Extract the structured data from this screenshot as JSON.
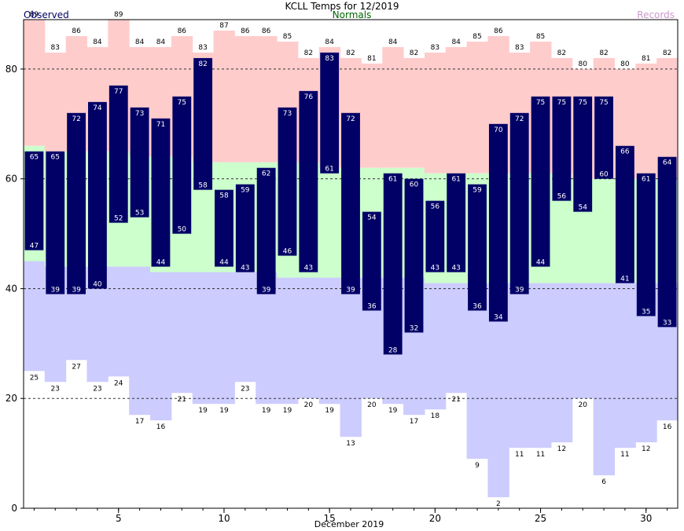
{
  "chart_data": {
    "type": "bar",
    "title": "KCLL Temps for 12/2019",
    "legend": {
      "observed": "Observed",
      "normals": "Normals",
      "records": "Records",
      "placement": "top"
    },
    "xlabel": "December 2019",
    "ylabel": "",
    "ylim": [
      0,
      89
    ],
    "y_ticks": [
      0,
      20,
      40,
      60,
      80
    ],
    "x_ticks": [
      5,
      10,
      15,
      20,
      25,
      30
    ],
    "grid": "horizontal dashed",
    "days": [
      1,
      2,
      3,
      4,
      5,
      6,
      7,
      8,
      9,
      10,
      11,
      12,
      13,
      14,
      15,
      16,
      17,
      18,
      19,
      20,
      21,
      22,
      23,
      24,
      25,
      26,
      27,
      28,
      29,
      30,
      31
    ],
    "series": [
      {
        "name": "Observed",
        "key": "observed_high",
        "values": [
          65,
          65,
          72,
          74,
          77,
          73,
          71,
          75,
          82,
          58,
          59,
          62,
          73,
          76,
          83,
          72,
          54,
          61,
          60,
          56,
          61,
          59,
          70,
          72,
          75,
          75,
          75,
          75,
          66,
          61,
          64
        ]
      },
      {
        "name": "Observed",
        "key": "observed_low",
        "values": [
          47,
          39,
          39,
          40,
          52,
          53,
          44,
          50,
          58,
          44,
          43,
          39,
          46,
          43,
          61,
          39,
          36,
          28,
          32,
          43,
          43,
          36,
          34,
          39,
          44,
          56,
          54,
          60,
          41,
          35,
          33
        ]
      },
      {
        "name": "Records",
        "key": "record_high",
        "values": [
          89,
          83,
          86,
          84,
          89,
          84,
          84,
          86,
          83,
          87,
          86,
          86,
          85,
          82,
          84,
          82,
          81,
          84,
          82,
          83,
          84,
          85,
          86,
          83,
          85,
          82,
          80,
          82,
          80,
          81,
          82
        ]
      },
      {
        "name": "Records",
        "key": "record_low",
        "values": [
          25,
          23,
          27,
          23,
          24,
          17,
          16,
          21,
          19,
          19,
          23,
          19,
          19,
          20,
          19,
          13,
          20,
          19,
          17,
          18,
          21,
          9,
          2,
          11,
          11,
          12,
          20,
          6,
          11,
          12,
          16
        ]
      },
      {
        "name": "Normals",
        "key": "normal_high",
        "values": [
          66,
          65,
          65,
          65,
          65,
          64,
          64,
          64,
          63,
          63,
          63,
          63,
          63,
          63,
          62,
          62,
          62,
          62,
          62,
          61,
          61,
          61,
          61,
          61,
          61,
          61,
          60,
          60,
          60,
          60,
          60
        ]
      },
      {
        "name": "Normals",
        "key": "normal_low",
        "values": [
          45,
          44,
          44,
          44,
          44,
          44,
          43,
          43,
          43,
          43,
          43,
          43,
          42,
          42,
          42,
          42,
          42,
          42,
          42,
          41,
          41,
          41,
          41,
          41,
          41,
          41,
          41,
          41,
          41,
          41,
          41
        ]
      }
    ],
    "colors": {
      "observed_bar": "#000066",
      "observed_label": "#ffffff",
      "normals_band": "#ccffcc",
      "normals_text": "#006600",
      "record_high_band": "#ffcccc",
      "record_low_band": "#ccccff",
      "records_text": "#cc99cc",
      "grid": "#333333",
      "text": "#000000"
    }
  }
}
